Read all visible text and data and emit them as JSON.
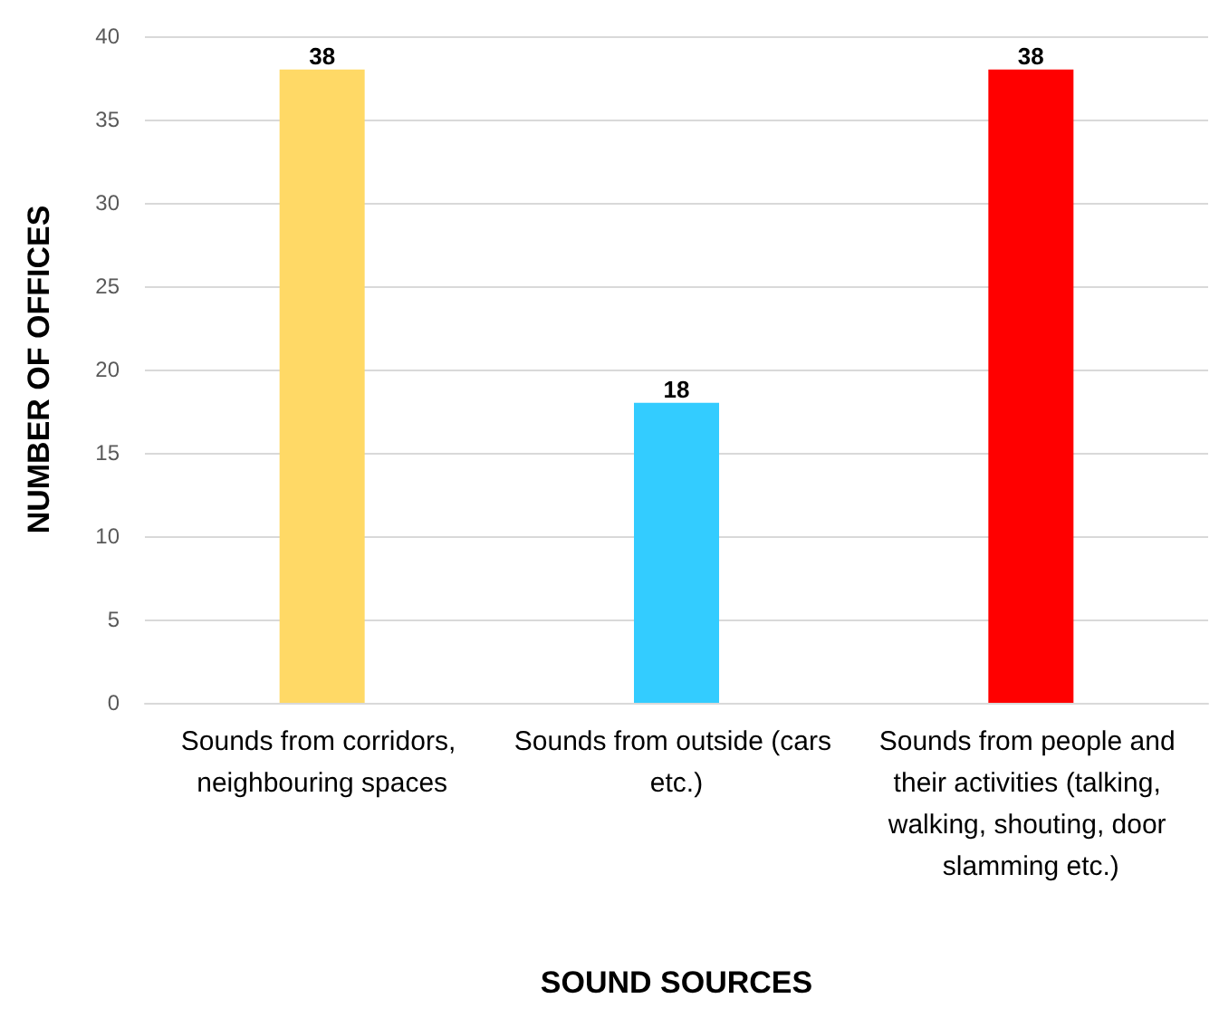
{
  "chart_data": {
    "type": "bar",
    "xlabel": "SOUND SOURCES",
    "ylabel": "NUMBER OF OFFICES",
    "categories": [
      "Sounds from corridors, neighbouring spaces",
      "Sounds from outside (cars etc.)",
      "Sounds from people and their activities (talking, walking, shouting, door slamming etc.)"
    ],
    "values": [
      38,
      18,
      38
    ],
    "colors": [
      "#ffd966",
      "#33ccff",
      "#ff0000"
    ],
    "ylim": [
      0,
      40
    ],
    "yticks": [
      0,
      5,
      10,
      15,
      20,
      25,
      30,
      35,
      40
    ],
    "grid": "y",
    "data_labels": true
  }
}
